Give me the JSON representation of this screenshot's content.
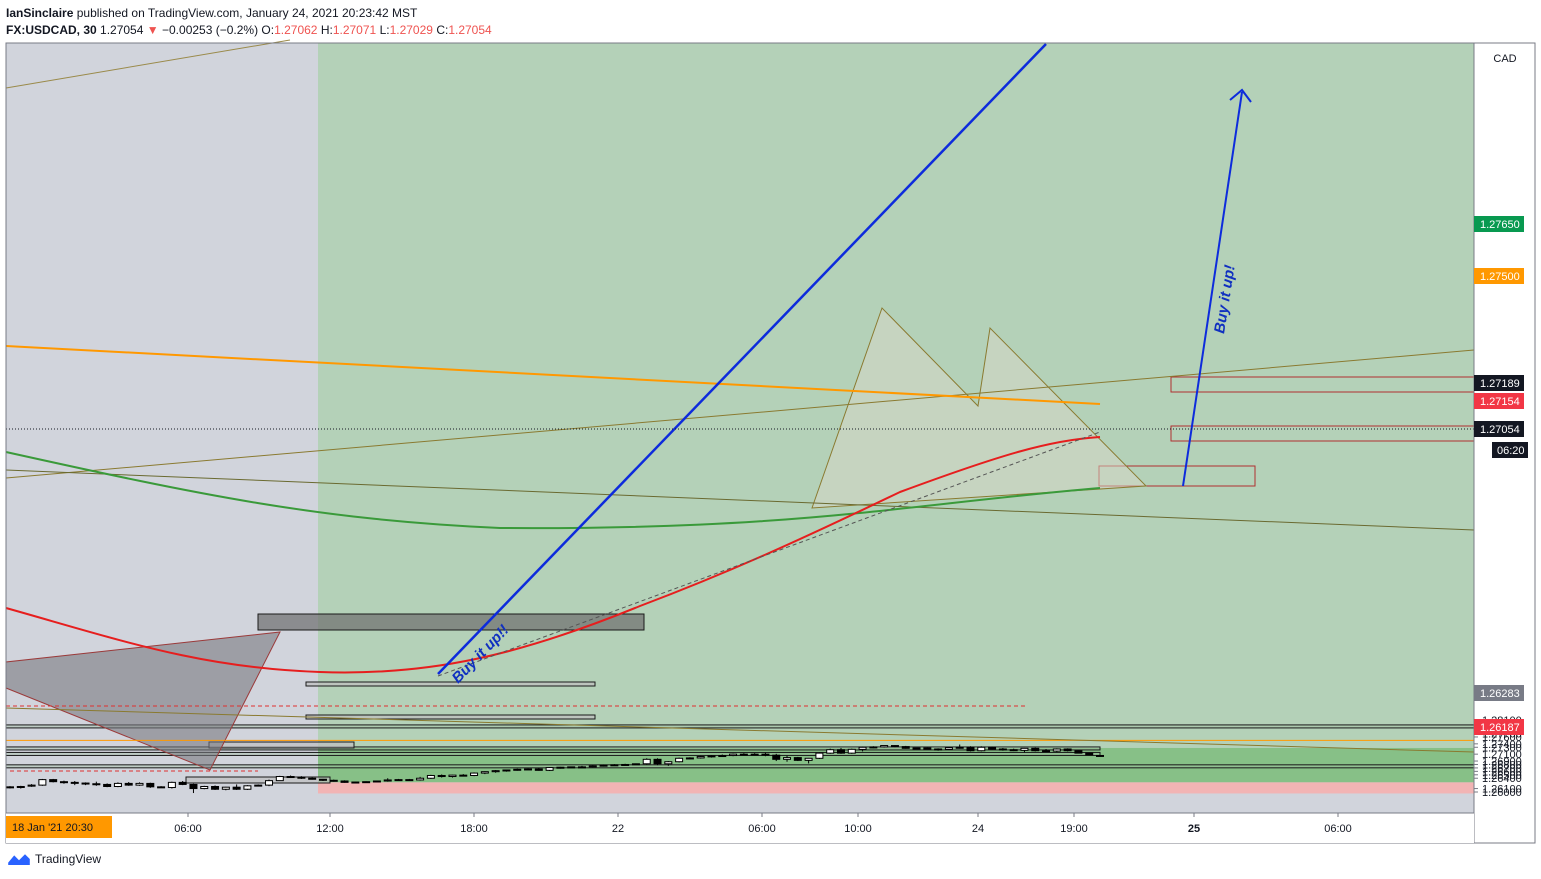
{
  "header": {
    "author": "IanSinclaire",
    "published": "published on TradingView.com, January 24, 2021 20:23:42 MST",
    "symbol": "FX:USDCAD, 30",
    "last": "1.27054",
    "change": "−0.00253 (−0.2%)",
    "o_label": "O:",
    "o": "1.27062",
    "h_label": "H:",
    "h": "1.27071",
    "l_label": "L:",
    "l": "1.27029",
    "c_label": "C:",
    "c": "1.27054"
  },
  "footer": {
    "brand": "TradingView"
  },
  "colors": {
    "bull_zone": "#87c087",
    "bull_zone_top": "#a8d0a8",
    "bear_zone": "#f2b4b4",
    "blue_line": "#0d2bdc",
    "orange": "#ff9800",
    "ema_red": "#e61e1e",
    "ema_green": "#3a9a3a",
    "price_tag_dark": "#131722",
    "price_tag_red": "#f23645",
    "price_tag_green": "#089950"
  },
  "chart_data": {
    "type": "candlestick",
    "currency": "CAD",
    "y_ticks": [
      "1.28100",
      "1.28000",
      "1.27900",
      "1.27800",
      "1.27700",
      "1.27600",
      "1.27400",
      "1.27300",
      "1.27100",
      "1.26900",
      "1.26800",
      "1.26700",
      "1.26600",
      "1.26500",
      "1.26400",
      "1.26100",
      "1.26000"
    ],
    "ylim": [
      1.2592,
      1.282
    ],
    "x_ticks": [
      "06:00",
      "12:00",
      "18:00",
      "22",
      "06:00",
      "10:00",
      "24",
      "19:00",
      "25",
      "06:00"
    ],
    "x_start_label": "18 Jan '21   20:30",
    "price_tags": [
      {
        "value": "1.27650",
        "color": "#089950"
      },
      {
        "value": "1.27500",
        "color": "#ff9800"
      },
      {
        "value": "1.27189",
        "color": "#131722"
      },
      {
        "value": "1.27154",
        "color": "#f23645"
      },
      {
        "value": "1.27054",
        "color": "#131722"
      },
      {
        "value": "06:20",
        "color": "#131722"
      },
      {
        "value": "1.26283",
        "color": "#787b86"
      },
      {
        "value": "1.26187",
        "color": "#f23645"
      }
    ],
    "annotations": [
      "Buy it up!!",
      "Buy it up!"
    ],
    "horizontal_levels": [
      1.2795,
      1.2788,
      1.275,
      1.2731,
      1.2718,
      1.2715,
      1.2679,
      1.2677,
      1.2628,
      1.2619
    ],
    "candles": [
      [
        1.2615,
        1.2617,
        1.261,
        1.2615
      ],
      [
        1.2615,
        1.2618,
        1.261,
        1.2616
      ],
      [
        1.2617,
        1.2623,
        1.2615,
        1.262
      ],
      [
        1.262,
        1.2638,
        1.2618,
        1.2636
      ],
      [
        1.2636,
        1.2638,
        1.2628,
        1.263
      ],
      [
        1.263,
        1.2633,
        1.2624,
        1.2628
      ],
      [
        1.2628,
        1.2632,
        1.262,
        1.2626
      ],
      [
        1.2626,
        1.2628,
        1.262,
        1.2624
      ],
      [
        1.2624,
        1.263,
        1.2618,
        1.2622
      ],
      [
        1.2622,
        1.2625,
        1.2614,
        1.2616
      ],
      [
        1.2616,
        1.2628,
        1.2614,
        1.2625
      ],
      [
        1.2625,
        1.2629,
        1.2618,
        1.262
      ],
      [
        1.262,
        1.2628,
        1.2618,
        1.2625
      ],
      [
        1.2625,
        1.2627,
        1.2612,
        1.2615
      ],
      [
        1.2615,
        1.2617,
        1.2612,
        1.2613
      ],
      [
        1.2613,
        1.263,
        1.261,
        1.2628
      ],
      [
        1.2628,
        1.2632,
        1.262,
        1.2622
      ],
      [
        1.2622,
        1.2624,
        1.2597,
        1.261
      ],
      [
        1.261,
        1.2618,
        1.2608,
        1.2616
      ],
      [
        1.2616,
        1.2619,
        1.2606,
        1.2608
      ],
      [
        1.2608,
        1.2615,
        1.2605,
        1.2614
      ],
      [
        1.2614,
        1.2622,
        1.2606,
        1.2608
      ],
      [
        1.2608,
        1.262,
        1.2606,
        1.2618
      ],
      [
        1.2618,
        1.2622,
        1.2616,
        1.262
      ],
      [
        1.262,
        1.2636,
        1.2617,
        1.2633
      ],
      [
        1.2633,
        1.2647,
        1.2632,
        1.2645
      ],
      [
        1.2645,
        1.2648,
        1.2641,
        1.2643
      ],
      [
        1.2643,
        1.2646,
        1.2638,
        1.264
      ],
      [
        1.264,
        1.2642,
        1.2636,
        1.2637
      ],
      [
        1.2637,
        1.2638,
        1.2632,
        1.2634
      ],
      [
        1.2634,
        1.2636,
        1.263,
        1.2632
      ],
      [
        1.2632,
        1.2634,
        1.2627,
        1.2628
      ],
      [
        1.2628,
        1.263,
        1.2626,
        1.2629
      ],
      [
        1.2629,
        1.2631,
        1.2627,
        1.263
      ],
      [
        1.263,
        1.2633,
        1.2628,
        1.2632
      ],
      [
        1.2632,
        1.264,
        1.263,
        1.2635
      ],
      [
        1.2635,
        1.2638,
        1.2633,
        1.2636
      ],
      [
        1.2636,
        1.2638,
        1.2633,
        1.2635
      ],
      [
        1.2635,
        1.2644,
        1.2633,
        1.264
      ],
      [
        1.264,
        1.265,
        1.2638,
        1.2648
      ],
      [
        1.2648,
        1.2651,
        1.2642,
        1.2645
      ],
      [
        1.2645,
        1.265,
        1.2642,
        1.2649
      ],
      [
        1.2649,
        1.2652,
        1.2646,
        1.2648
      ],
      [
        1.2648,
        1.2657,
        1.2646,
        1.2655
      ],
      [
        1.2655,
        1.266,
        1.2652,
        1.2659
      ],
      [
        1.2659,
        1.2664,
        1.2656,
        1.2662
      ],
      [
        1.2662,
        1.2665,
        1.2659,
        1.2664
      ],
      [
        1.2664,
        1.2668,
        1.2662,
        1.2666
      ],
      [
        1.2666,
        1.2669,
        1.2664,
        1.2667
      ],
      [
        1.2667,
        1.267,
        1.2662,
        1.2663
      ],
      [
        1.2663,
        1.2672,
        1.2661,
        1.2671
      ],
      [
        1.2671,
        1.2673,
        1.2668,
        1.2672
      ],
      [
        1.2672,
        1.2674,
        1.267,
        1.2673
      ],
      [
        1.2673,
        1.2676,
        1.2671,
        1.2673
      ],
      [
        1.2673,
        1.2678,
        1.2672,
        1.2676
      ],
      [
        1.2676,
        1.268,
        1.2674,
        1.2678
      ],
      [
        1.2678,
        1.2681,
        1.2676,
        1.2679
      ],
      [
        1.2679,
        1.2682,
        1.2677,
        1.268
      ],
      [
        1.268,
        1.2683,
        1.2679,
        1.2682
      ],
      [
        1.2682,
        1.2698,
        1.268,
        1.2695
      ],
      [
        1.2695,
        1.2698,
        1.2678,
        1.2682
      ],
      [
        1.2682,
        1.269,
        1.2676,
        1.2688
      ],
      [
        1.2688,
        1.27,
        1.2686,
        1.2698
      ],
      [
        1.2698,
        1.2701,
        1.2695,
        1.2699
      ],
      [
        1.2699,
        1.2705,
        1.2697,
        1.2703
      ],
      [
        1.2703,
        1.2707,
        1.27,
        1.2705
      ],
      [
        1.2705,
        1.2709,
        1.2702,
        1.2706
      ],
      [
        1.2706,
        1.2712,
        1.2704,
        1.271
      ],
      [
        1.271,
        1.2713,
        1.2706,
        1.2709
      ],
      [
        1.2709,
        1.2713,
        1.2706,
        1.271
      ],
      [
        1.271,
        1.2714,
        1.2704,
        1.2707
      ],
      [
        1.2707,
        1.2711,
        1.269,
        1.2695
      ],
      [
        1.2695,
        1.2705,
        1.2688,
        1.27
      ],
      [
        1.27,
        1.2702,
        1.269,
        1.2692
      ],
      [
        1.2692,
        1.2699,
        1.2683,
        1.2698
      ],
      [
        1.2698,
        1.2715,
        1.2696,
        1.2713
      ],
      [
        1.2713,
        1.2726,
        1.2711,
        1.2723
      ],
      [
        1.2723,
        1.2728,
        1.2711,
        1.2713
      ],
      [
        1.2713,
        1.2726,
        1.2711,
        1.2724
      ],
      [
        1.2724,
        1.2732,
        1.2718,
        1.273
      ],
      [
        1.273,
        1.2733,
        1.2727,
        1.2731
      ],
      [
        1.2731,
        1.2735,
        1.2729,
        1.2735
      ],
      [
        1.2735,
        1.2736,
        1.273,
        1.2732
      ],
      [
        1.2732,
        1.2734,
        1.2726,
        1.2727
      ],
      [
        1.2727,
        1.2729,
        1.2725,
        1.2728
      ],
      [
        1.2728,
        1.273,
        1.2724,
        1.2725
      ],
      [
        1.2725,
        1.2727,
        1.272,
        1.2724
      ],
      [
        1.2724,
        1.273,
        1.2722,
        1.2729
      ],
      [
        1.2729,
        1.2738,
        1.2726,
        1.273
      ],
      [
        1.273,
        1.2733,
        1.2718,
        1.272
      ],
      [
        1.272,
        1.2733,
        1.2718,
        1.273
      ],
      [
        1.273,
        1.2732,
        1.2723,
        1.2725
      ],
      [
        1.2725,
        1.2728,
        1.272,
        1.2723
      ],
      [
        1.2723,
        1.2726,
        1.2719,
        1.2721
      ],
      [
        1.2721,
        1.2728,
        1.2715,
        1.2727
      ],
      [
        1.2727,
        1.2729,
        1.2718,
        1.272
      ],
      [
        1.272,
        1.2725,
        1.2716,
        1.2719
      ],
      [
        1.2719,
        1.2727,
        1.2716,
        1.2725
      ],
      [
        1.2725,
        1.2727,
        1.2718,
        1.272
      ],
      [
        1.272,
        1.2721,
        1.2712,
        1.2713
      ],
      [
        1.2713,
        1.2714,
        1.2706,
        1.2708
      ],
      [
        1.27062,
        1.27071,
        1.27029,
        1.27054
      ]
    ]
  }
}
